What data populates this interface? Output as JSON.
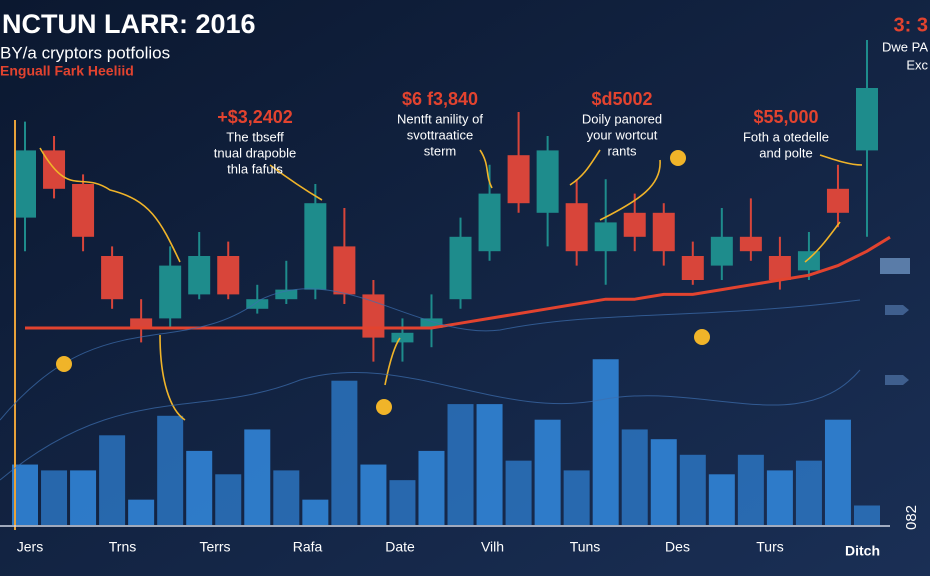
{
  "chart_data": {
    "type": "candlestick",
    "title": "NCTUN LARR: 2016",
    "subtitle": "BY/a cryptors potfolios",
    "subtitle2": "Enguall Fark Heeliid",
    "corner_top": "3: 3",
    "corner_mid": "Dwe PA",
    "corner_low": "Exc",
    "right_label": "082",
    "brand": "Ditch",
    "annotations": [
      {
        "value_text": "+$3,2402",
        "lines": [
          "The tbseff",
          "tnual drapoble",
          "thla fafuls"
        ]
      },
      {
        "value_text": "$6 f3,840",
        "lines": [
          "Nentft anility of",
          "svottraatice",
          "sterm"
        ]
      },
      {
        "value_text": "$d5002",
        "lines": [
          "Doily panored",
          "your wortcut",
          "rants"
        ]
      },
      {
        "value_text": "$55,000",
        "lines": [
          "Foth a otedelle",
          "and polte"
        ]
      }
    ],
    "xlabels": [
      "Jers",
      "Trns",
      "Terrs",
      "Rafa",
      "Date",
      "Vilh",
      "Tuns",
      "Des",
      "Turs"
    ],
    "open": [
      63,
      77,
      70,
      55,
      42,
      42,
      47,
      55,
      44,
      46,
      48,
      57,
      47,
      37,
      40,
      46,
      56,
      76,
      64,
      66,
      56,
      64,
      64,
      55,
      53,
      59,
      55,
      52,
      69,
      77
    ],
    "close": [
      77,
      69,
      59,
      46,
      40,
      53,
      55,
      47,
      46,
      48,
      66,
      47,
      38,
      39,
      42,
      59,
      68,
      66,
      77,
      56,
      62,
      59,
      56,
      50,
      59,
      56,
      50,
      56,
      64,
      90
    ],
    "high": [
      83,
      80,
      72,
      57,
      46,
      57,
      60,
      58,
      49,
      54,
      70,
      65,
      50,
      42,
      47,
      63,
      74,
      85,
      80,
      71,
      71,
      68,
      66,
      58,
      65,
      67,
      59,
      60,
      74,
      100
    ],
    "low": [
      56,
      67,
      56,
      44,
      37,
      40,
      46,
      46,
      43,
      45,
      46,
      45,
      33,
      33,
      36,
      44,
      54,
      64,
      57,
      53,
      49,
      56,
      53,
      49,
      50,
      54,
      48,
      50,
      61,
      59
    ],
    "average": [
      40,
      40,
      40,
      40,
      40,
      40,
      40,
      40,
      40,
      40,
      40,
      40,
      40,
      40,
      40,
      41,
      42,
      43,
      44,
      45,
      46,
      46,
      47,
      47,
      48,
      49,
      50,
      51,
      53,
      56
    ],
    "volume": [
      31,
      28,
      28,
      46,
      13,
      56,
      38,
      26,
      49,
      28,
      13,
      74,
      31,
      23,
      38,
      62,
      62,
      33,
      54,
      28,
      85,
      49,
      44,
      36,
      26,
      36,
      28,
      33,
      54,
      10
    ],
    "ylim": [
      0,
      100
    ],
    "volume_lim": [
      0,
      100
    ],
    "up_color": "#1e8c8c",
    "down_color": "#d8453a",
    "average_color": "#e2432f",
    "volume_color": "#2f7fd0"
  }
}
